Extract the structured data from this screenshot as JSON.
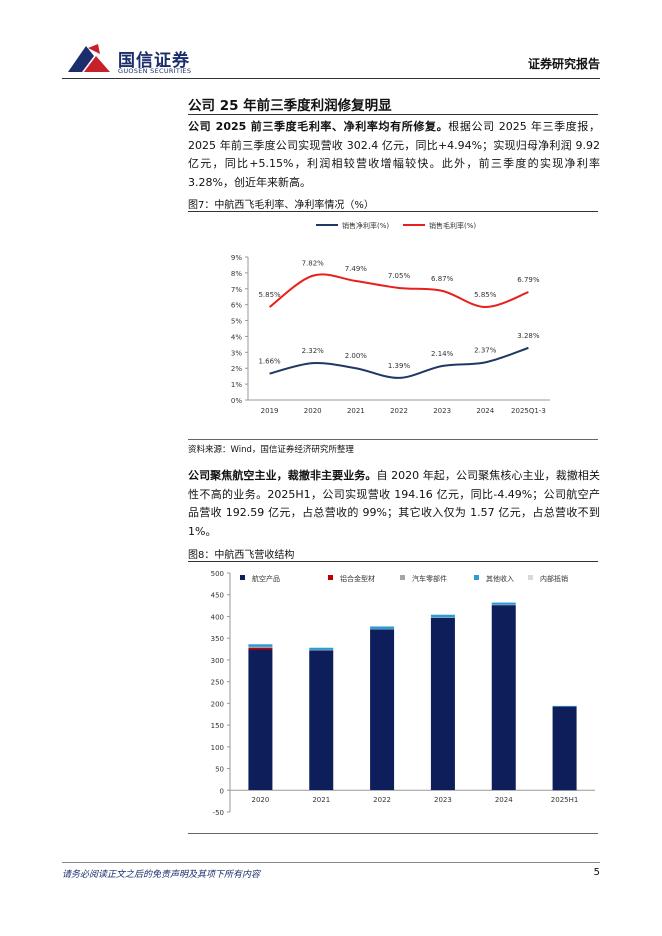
{
  "header": {
    "logo_cn": "国信证券",
    "logo_en": "GUOSEN SECURITIES",
    "report_type": "证券研究报告"
  },
  "section_title": "公司 25 年前三季度利润修复明显",
  "paragraphs": [
    {
      "lead": "公司 2025 前三季度毛利率、净利率均有所修复。",
      "text": "根据公司 2025 年三季度报，2025 年前三季度公司实现营收 302.4 亿元，同比+4.94%；实现归母净利润 9.92 亿元，同比+5.15%，利润相较营收增幅较快。此外，前三季度的实现净利率 3.28%，创近年来新高。"
    },
    {
      "lead": "公司聚焦航空主业，裁撤非主要业务。",
      "text": "自 2020 年起，公司聚焦核心主业，裁撤相关性不高的业务。2025H1，公司实现营收 194.16 亿元，同比-4.49%；公司航空产品营收 192.59 亿元，占总营收的 99%；其它收入仅为 1.57 亿元，占总营收不到 1%。"
    }
  ],
  "figure7_source": "资料来源：Wind，国信证券经济研究所整理",
  "footer": {
    "disclaimer": "请务必阅读正文之后的免责声明及其项下所有内容",
    "page": 5
  },
  "chart_data": [
    {
      "type": "line",
      "title": "图7：中航西飞毛利率、净利率情况（%）",
      "categories": [
        "2019",
        "2020",
        "2021",
        "2022",
        "2023",
        "2024",
        "2025Q1-3"
      ],
      "series": [
        {
          "name": "销售净利率(%)",
          "color": "#1f3864",
          "values": [
            1.66,
            2.32,
            2.0,
            1.39,
            2.14,
            2.37,
            3.28
          ],
          "value_labels": [
            "1.66%",
            "2.32%",
            "2.00%",
            "1.39%",
            "2.14%",
            "2.37%",
            "3.28%"
          ]
        },
        {
          "name": "销售毛利率(%)",
          "color": "#e8201d",
          "values": [
            5.85,
            7.82,
            7.49,
            7.05,
            6.87,
            5.85,
            6.79
          ],
          "value_labels": [
            "5.85%",
            "7.82%",
            "7.49%",
            "7.05%",
            "6.87%",
            "5.85%",
            "6.79%"
          ]
        }
      ],
      "ylim": [
        0,
        9
      ],
      "yticks": [
        {
          "value": 0,
          "label": "0%"
        },
        {
          "value": 1,
          "label": "1%"
        },
        {
          "value": 2,
          "label": "2%"
        },
        {
          "value": 3,
          "label": "3%"
        },
        {
          "value": 4,
          "label": "4%"
        },
        {
          "value": 5,
          "label": "5%"
        },
        {
          "value": 6,
          "label": "6%"
        },
        {
          "value": 7,
          "label": "7%"
        },
        {
          "value": 8,
          "label": "8%"
        },
        {
          "value": 9,
          "label": "9%"
        }
      ]
    },
    {
      "type": "bar",
      "stacked": true,
      "title": "图8：中航西飞营收结构",
      "categories": [
        "2020",
        "2021",
        "2022",
        "2023",
        "2024",
        "2025H1"
      ],
      "series": [
        {
          "name": "航空产品",
          "color": "#0d1e5b",
          "values": [
            324,
            322,
            370,
            397,
            426,
            192.59
          ]
        },
        {
          "name": "铝合金型材",
          "color": "#c00000",
          "values": [
            4,
            0,
            0,
            0,
            0,
            0
          ]
        },
        {
          "name": "汽车零部件",
          "color": "#a6a6a6",
          "values": [
            2,
            1,
            1,
            1,
            1,
            0
          ]
        },
        {
          "name": "其他收入",
          "color": "#2e9bd6",
          "values": [
            6,
            5,
            6,
            6,
            5,
            1.57
          ]
        },
        {
          "name": "内部抵销",
          "color": "#d9d9d9",
          "values": [
            -1,
            -1,
            -1,
            -1,
            -1,
            0
          ]
        }
      ],
      "ylim": [
        -50,
        500
      ],
      "yticks": [
        -50,
        0,
        50,
        100,
        150,
        200,
        250,
        300,
        350,
        400,
        450,
        500
      ]
    }
  ]
}
